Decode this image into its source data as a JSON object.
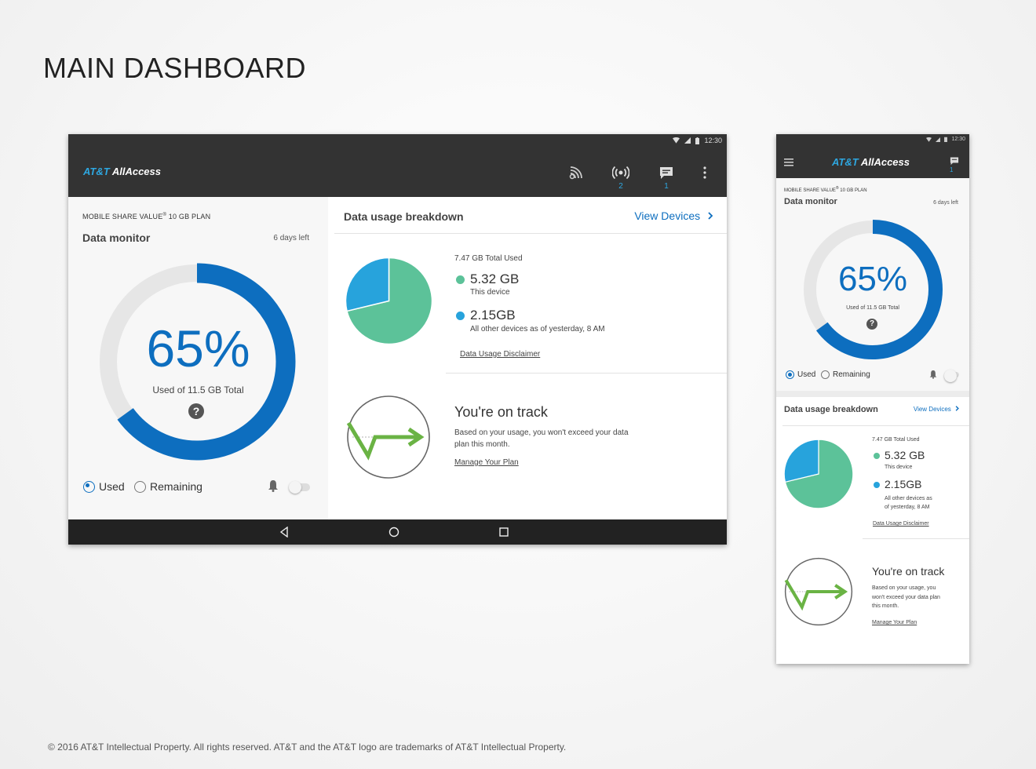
{
  "page": {
    "title": "MAIN DASHBOARD",
    "footer": "© 2016 AT&T Intellectual Property. All rights reserved. AT&T and the AT&T logo are trademarks of AT&T Intellectual Property."
  },
  "status": {
    "time": "12:30"
  },
  "app": {
    "logo_brand": "AT&T",
    "logo_product": "AllAccess"
  },
  "appbar": {
    "hotspot_count": "2",
    "messages_count": "1"
  },
  "data_monitor": {
    "plan": "MOBILE SHARE VALUE",
    "plan_reg": "®",
    "plan_rest": " 10 GB PLAN",
    "title": "Data monitor",
    "days_left": "6 days left",
    "percent": "65%",
    "percent_value": 0.65,
    "used_of": "Used of 11.5 GB Total",
    "help": "?",
    "radio_used": "Used",
    "radio_remaining": "Remaining"
  },
  "breakdown": {
    "title": "Data usage breakdown",
    "view_devices": "View Devices",
    "total_used": "7.47 GB Total Used",
    "this_device_value": "5.32 GB",
    "this_device_label": "This device",
    "other_value": "2.15GB",
    "other_label": "All other devices as of yesterday, 8 AM",
    "other_label_line1": "All other devices as",
    "other_label_line2": "of yesterday, 8 AM",
    "disclaimer": "Data Usage Disclaimer"
  },
  "on_track": {
    "title": "You're on track",
    "text": "Based on your usage, you won't exceed your data plan this month.",
    "text_line1": "Based on your usage, you won't exceed your data",
    "text_line2": "plan this month.",
    "phone_line1": "Based on your usage, you",
    "phone_line2": "won't exceed your data plan",
    "phone_line3": "this month.",
    "manage": "Manage Your Plan"
  },
  "chart_data": {
    "type": "pie",
    "categories": [
      "This device",
      "All other devices"
    ],
    "values": [
      5.32,
      2.15
    ],
    "colors": [
      "#5cc299",
      "#27a3dc"
    ]
  },
  "colors": {
    "accent_blue": "#0d6ebf",
    "light_blue": "#2ea7e0",
    "green": "#5cc299",
    "track_green": "#6ab344",
    "appbar": "#333333"
  },
  "icons": {
    "wifi": "wifi-icon",
    "signal": "signal-icon",
    "battery": "battery-icon",
    "cast": "cast-icon",
    "hotspot": "hotspot-icon",
    "message": "message-icon",
    "more": "more-vert-icon",
    "back": "back-icon",
    "home": "home-icon",
    "recents": "recents-icon",
    "menu": "menu-icon",
    "bell": "bell-icon",
    "chevron": "chevron-right-icon"
  }
}
